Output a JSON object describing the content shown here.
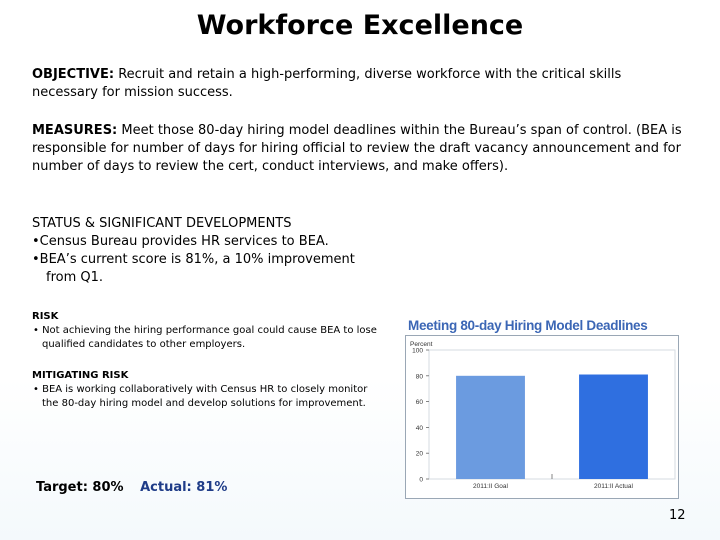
{
  "title": "Workforce Excellence",
  "objective": {
    "label": "OBJECTIVE:",
    "text": "Recruit and retain a high-performing, diverse workforce with the critical skills necessary for mission success."
  },
  "measures": {
    "label": "MEASURES:",
    "text": "Meet those 80-day hiring model deadlines within the Bureau’s span of control. (BEA is responsible for number of days for hiring official to review the draft vacancy announcement and for number of days to review the cert, conduct interviews, and make offers)."
  },
  "status": {
    "heading": "STATUS & SIGNIFICANT DEVELOPMENTS",
    "items": [
      "•Census Bureau provides HR services to BEA.",
      "•BEA’s current score is 81%, a 10% improvement",
      "from Q1."
    ]
  },
  "risk": {
    "heading": "RISK",
    "items": [
      "• Not achieving the hiring performance goal could cause BEA to lose qualified candidates to other employers."
    ]
  },
  "mitigating": {
    "heading": "MITIGATING RISK",
    "items": [
      "• BEA is working collaboratively with Census HR to closely monitor the 80-day hiring model and develop solutions for improvement."
    ]
  },
  "target": {
    "target_text": "Target: 80%",
    "actual_text": "Actual: 81%"
  },
  "page_number": "12",
  "chart_data": {
    "type": "bar",
    "title": "Meeting 80-day Hiring Model Deadlines",
    "ylabel": "Percent",
    "categories": [
      "2011:II Goal",
      "2011:II Actual"
    ],
    "values": [
      80,
      81
    ],
    "ylim": [
      0,
      100
    ],
    "yticks": [
      "0",
      "20",
      "40",
      "60",
      "80",
      "100"
    ],
    "colors": [
      "#6b9be0",
      "#2f6fe0"
    ],
    "grid": false
  }
}
